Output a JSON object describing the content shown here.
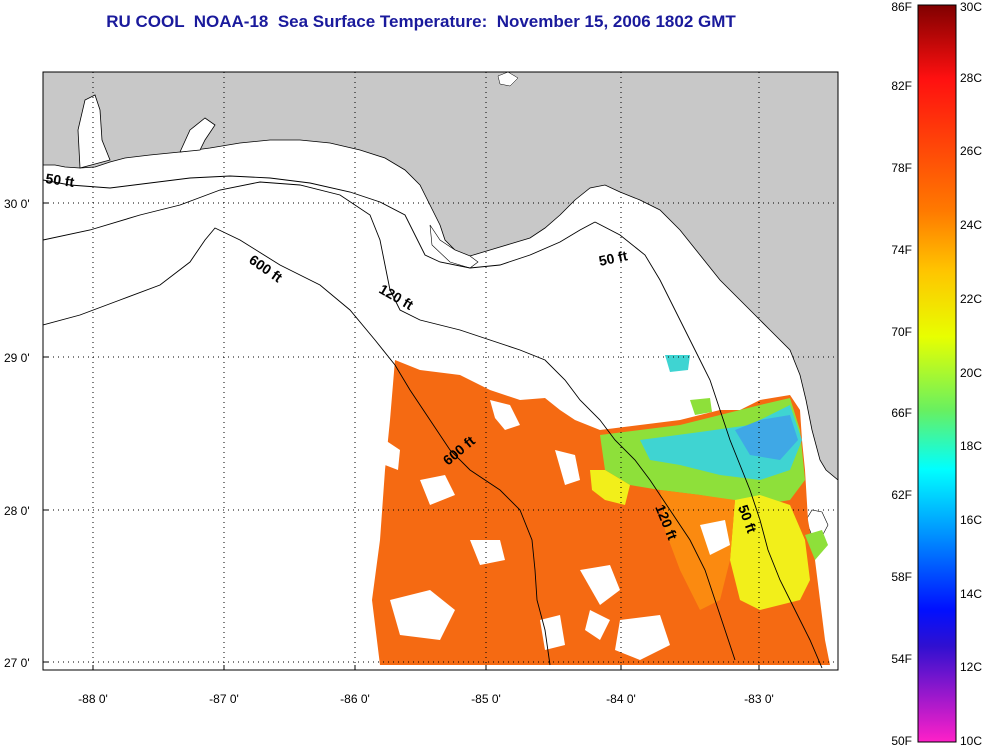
{
  "title": "RU COOL  NOAA-18  Sea Surface Temperature:  November 15, 2006 1802 GMT",
  "map": {
    "lat_labels": [
      {
        "text": "30 0'",
        "lat": 30
      },
      {
        "text": "29 0'",
        "lat": 29
      },
      {
        "text": "28 0'",
        "lat": 28
      },
      {
        "text": "27 0'",
        "lat": 27
      }
    ],
    "lon_labels": [
      {
        "text": "-88 0'",
        "lon": -88
      },
      {
        "text": "-87 0'",
        "lon": -87
      },
      {
        "text": "-86 0'",
        "lon": -86
      },
      {
        "text": "-85 0'",
        "lon": -85
      },
      {
        "text": "-84 0'",
        "lon": -84
      },
      {
        "text": "-83 0'",
        "lon": -83
      }
    ],
    "contour_labels": {
      "c50_west": "50 ft",
      "c600_north": "600 ft",
      "c120_north": "120 ft",
      "c50_east": "50 ft",
      "c600_south": "600 ft",
      "c120_south": "120 ft",
      "c50_south": "50 ft"
    },
    "colors": {
      "land": "#c8c8c8",
      "ocean": "#ffffff",
      "sst_warm": "#f56a12",
      "sst_orange": "#fb8a10",
      "sst_yellow": "#f2ef1a",
      "sst_green": "#8ee03a",
      "sst_cyan": "#3fd4d2",
      "sst_blue": "#3fa8e6"
    }
  },
  "colorbar": {
    "f_labels": [
      "86F",
      "82F",
      "78F",
      "74F",
      "70F",
      "66F",
      "62F",
      "58F",
      "54F",
      "50F"
    ],
    "c_labels": [
      "30C",
      "28C",
      "26C",
      "24C",
      "22C",
      "20C",
      "18C",
      "16C",
      "14C",
      "12C",
      "10C"
    ]
  }
}
